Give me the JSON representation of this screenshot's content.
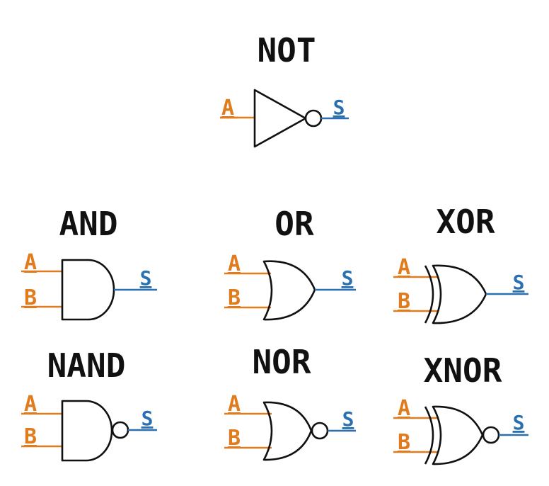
{
  "colors": {
    "input": "#e07b1e",
    "output": "#2a6fb0",
    "gate": "#111111"
  },
  "input_labels": {
    "a": "A",
    "b": "B"
  },
  "output_label": "S",
  "gates": {
    "not": {
      "title": "NOT",
      "icon": "not-gate-symbol"
    },
    "and": {
      "title": "AND",
      "icon": "and-gate-symbol"
    },
    "or": {
      "title": "OR",
      "icon": "or-gate-symbol"
    },
    "xor": {
      "title": "XOR",
      "icon": "xor-gate-symbol"
    },
    "nand": {
      "title": "NAND",
      "icon": "nand-gate-symbol"
    },
    "nor": {
      "title": "NOR",
      "icon": "nor-gate-symbol"
    },
    "xnor": {
      "title": "XNOR",
      "icon": "xnor-gate-symbol"
    }
  }
}
